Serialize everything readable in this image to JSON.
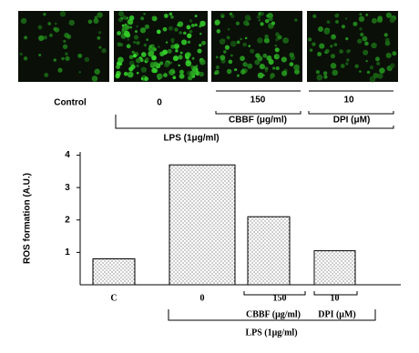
{
  "micrographs": {
    "labels": [
      "Control",
      "0",
      "150",
      "10"
    ],
    "groups": [
      "CBBF (μg/ml)",
      "DPI (μM)",
      "LPS (1μg/ml)"
    ]
  },
  "chart_data": {
    "type": "bar",
    "y_label": "ROS formation (A.U.)",
    "categories": [
      "C",
      "0",
      "150",
      "10"
    ],
    "values": [
      0.8,
      3.7,
      2.1,
      1.05
    ],
    "ylim": [
      0,
      4.1
    ],
    "yticks": [
      1,
      2,
      3,
      4
    ],
    "groups": [
      "CBBF (μg/ml)",
      "DPI (μM)",
      "LPS (1μg/ml)"
    ]
  }
}
